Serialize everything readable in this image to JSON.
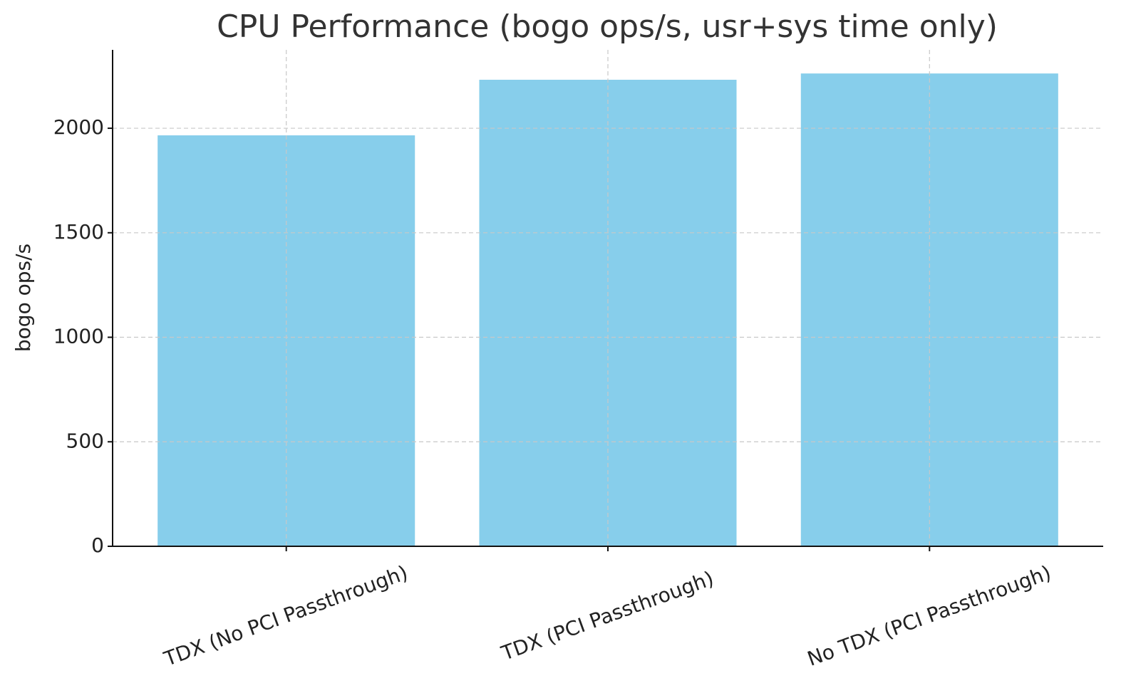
{
  "chart_data": {
    "type": "bar",
    "title": "CPU Performance (bogo ops/s, usr+sys time only)",
    "y_label": "bogo ops/s",
    "categories": [
      "TDX (No PCI Passthrough)",
      "TDX (PCI Passthrough)",
      "No TDX (PCI Passthrough)"
    ],
    "values": [
      1966,
      2232,
      2262
    ],
    "color": "#87ceeb",
    "ylim": [
      0,
      2375
    ],
    "yticks": [
      0,
      500,
      1000,
      1500,
      2000
    ],
    "grid": true
  }
}
